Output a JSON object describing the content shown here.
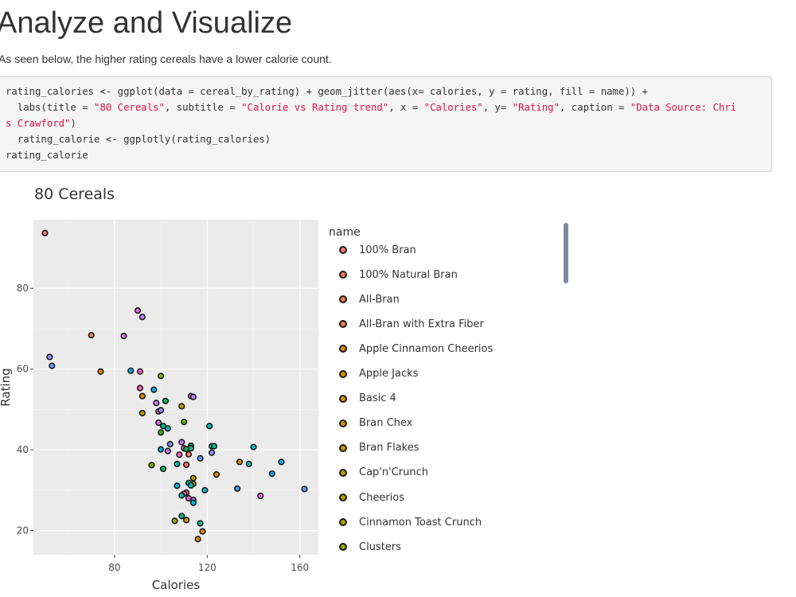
{
  "page": {
    "heading": "Analyze and Visualize",
    "description": "As seen below, the higher rating cereals have a lower calorie count."
  },
  "code": {
    "l1": "rating_calories <- ggplot(data = cereal_by_rating) + geom_jitter(aes(x= calories, y = rating, fill = name)) +",
    "l2a": "  labs(title = ",
    "l2b": "\"80 Cereals\"",
    "l2c": ", subtitle = ",
    "l2d": "\"Calorie vs Rating trend\"",
    "l2e": ", x = ",
    "l2f": "\"Calories\"",
    "l2g": ", y= ",
    "l2h": "\"Rating\"",
    "l2i": ", caption = ",
    "l2j": "\"Data Source: Chri",
    "l3a": "s Crawford\"",
    "l3b": ")",
    "l4": "  rating_calorie <- ggplotly(rating_calories)",
    "l5": "rating_calorie"
  },
  "chart_data": {
    "type": "scatter",
    "title": "80 Cereals",
    "xlabel": "Calories",
    "ylabel": "Rating",
    "xlim": [
      45,
      168
    ],
    "ylim": [
      14,
      97
    ],
    "xticks": [
      80,
      120,
      160
    ],
    "yticks": [
      20,
      40,
      60,
      80
    ],
    "grid": true,
    "legend_title": "name",
    "legend_position": "right",
    "legend": [
      {
        "name": "100% Bran",
        "color": "#f8766d"
      },
      {
        "name": "100% Natural Bran",
        "color": "#f47a5a"
      },
      {
        "name": "All-Bran",
        "color": "#f17d4f"
      },
      {
        "name": "All-Bran with Extra Fiber",
        "color": "#ec8240"
      },
      {
        "name": "Apple Cinnamon Cheerios",
        "color": "#e68613"
      },
      {
        "name": "Apple Jacks",
        "color": "#e08b00"
      },
      {
        "name": "Basic 4",
        "color": "#d89000"
      },
      {
        "name": "Bran Chex",
        "color": "#cf9400"
      },
      {
        "name": "Bran Flakes",
        "color": "#c59900"
      },
      {
        "name": "Cap'n'Crunch",
        "color": "#bb9d00"
      },
      {
        "name": "Cheerios",
        "color": "#b0a100"
      },
      {
        "name": "Cinnamon Toast Crunch",
        "color": "#a3a500"
      },
      {
        "name": "Clusters",
        "color": "#96a900"
      }
    ],
    "points": [
      {
        "x": 50,
        "y": 93.7,
        "color": "#f8766d"
      },
      {
        "x": 70,
        "y": 68.4,
        "color": "#ec8240"
      },
      {
        "x": 52,
        "y": 63.0,
        "color": "#8b93ff"
      },
      {
        "x": 53,
        "y": 60.8,
        "color": "#6e9bff"
      },
      {
        "x": 74,
        "y": 59.4,
        "color": "#e68613"
      },
      {
        "x": 84,
        "y": 68.2,
        "color": "#e76bf3"
      },
      {
        "x": 90,
        "y": 74.5,
        "color": "#e76bf3"
      },
      {
        "x": 92,
        "y": 72.9,
        "color": "#c77cff"
      },
      {
        "x": 87,
        "y": 59.6,
        "color": "#00b0f6"
      },
      {
        "x": 91,
        "y": 59.4,
        "color": "#fd61d1"
      },
      {
        "x": 100,
        "y": 58.3,
        "color": "#7cae00"
      },
      {
        "x": 91,
        "y": 55.3,
        "color": "#ff61c3"
      },
      {
        "x": 97,
        "y": 54.9,
        "color": "#00b8e7"
      },
      {
        "x": 92,
        "y": 53.3,
        "color": "#e08b00"
      },
      {
        "x": 113,
        "y": 53.3,
        "color": "#f564e3"
      },
      {
        "x": 114,
        "y": 53.1,
        "color": "#b983ff"
      },
      {
        "x": 98,
        "y": 51.6,
        "color": "#d575fe"
      },
      {
        "x": 102,
        "y": 52.1,
        "color": "#00bd5c"
      },
      {
        "x": 109,
        "y": 50.8,
        "color": "#c59900"
      },
      {
        "x": 92,
        "y": 49.1,
        "color": "#bb9d00"
      },
      {
        "x": 99,
        "y": 49.5,
        "color": "#ff6a98"
      },
      {
        "x": 100,
        "y": 49.8,
        "color": "#9590ff"
      },
      {
        "x": 99,
        "y": 46.7,
        "color": "#e76bf3"
      },
      {
        "x": 110,
        "y": 46.9,
        "color": "#5bb300"
      },
      {
        "x": 101,
        "y": 45.9,
        "color": "#00c08b"
      },
      {
        "x": 103,
        "y": 45.3,
        "color": "#00bfc4"
      },
      {
        "x": 100,
        "y": 44.3,
        "color": "#39b600"
      },
      {
        "x": 121,
        "y": 45.9,
        "color": "#00bfc4"
      },
      {
        "x": 104,
        "y": 41.4,
        "color": "#8b93ff"
      },
      {
        "x": 109,
        "y": 41.9,
        "color": "#d575fe"
      },
      {
        "x": 110,
        "y": 40.4,
        "color": "#e76bf3"
      },
      {
        "x": 111,
        "y": 40.2,
        "color": "#00bd5c"
      },
      {
        "x": 113,
        "y": 41.0,
        "color": "#00ba38"
      },
      {
        "x": 113,
        "y": 40.4,
        "color": "#00c19a"
      },
      {
        "x": 122,
        "y": 40.9,
        "color": "#00bf7d"
      },
      {
        "x": 123,
        "y": 40.9,
        "color": "#00c08b"
      },
      {
        "x": 100,
        "y": 40.1,
        "color": "#00a9ff"
      },
      {
        "x": 103,
        "y": 39.7,
        "color": "#c77cff"
      },
      {
        "x": 108,
        "y": 38.8,
        "color": "#ff61c3"
      },
      {
        "x": 112,
        "y": 38.9,
        "color": "#f8766d"
      },
      {
        "x": 122,
        "y": 39.3,
        "color": "#9590ff"
      },
      {
        "x": 140,
        "y": 40.7,
        "color": "#00bcd8"
      },
      {
        "x": 117,
        "y": 37.9,
        "color": "#619cff"
      },
      {
        "x": 107,
        "y": 36.5,
        "color": "#00c1aa"
      },
      {
        "x": 111,
        "y": 36.3,
        "color": "#f8766d"
      },
      {
        "x": 96,
        "y": 36.2,
        "color": "#7cae00"
      },
      {
        "x": 101,
        "y": 35.3,
        "color": "#00bd5c"
      },
      {
        "x": 134,
        "y": 37.0,
        "color": "#e08b00"
      },
      {
        "x": 138,
        "y": 36.5,
        "color": "#00c0b8"
      },
      {
        "x": 152,
        "y": 37.0,
        "color": "#00b4f0"
      },
      {
        "x": 124,
        "y": 33.9,
        "color": "#e68613"
      },
      {
        "x": 148,
        "y": 34.1,
        "color": "#00a9ff"
      },
      {
        "x": 114,
        "y": 33.0,
        "color": "#c59900"
      },
      {
        "x": 112,
        "y": 31.8,
        "color": "#00c08b"
      },
      {
        "x": 114,
        "y": 31.6,
        "color": "#a3a500"
      },
      {
        "x": 107,
        "y": 31.1,
        "color": "#00bcd8"
      },
      {
        "x": 113,
        "y": 31.2,
        "color": "#00bfc4"
      },
      {
        "x": 133,
        "y": 30.4,
        "color": "#35a2ff"
      },
      {
        "x": 162,
        "y": 30.3,
        "color": "#619cff"
      },
      {
        "x": 119,
        "y": 30.0,
        "color": "#00bcd8"
      },
      {
        "x": 111,
        "y": 29.4,
        "color": "#ff6c91"
      },
      {
        "x": 110,
        "y": 29.1,
        "color": "#ff6a98"
      },
      {
        "x": 109,
        "y": 28.7,
        "color": "#00c0b8"
      },
      {
        "x": 143,
        "y": 28.6,
        "color": "#e76bf3"
      },
      {
        "x": 112,
        "y": 28.0,
        "color": "#fd61d1"
      },
      {
        "x": 114,
        "y": 27.6,
        "color": "#b983ff"
      },
      {
        "x": 114,
        "y": 26.9,
        "color": "#00bcd8"
      },
      {
        "x": 109,
        "y": 23.6,
        "color": "#00c19a"
      },
      {
        "x": 106,
        "y": 22.4,
        "color": "#a3a500"
      },
      {
        "x": 111,
        "y": 22.6,
        "color": "#bb9d00"
      },
      {
        "x": 117,
        "y": 21.8,
        "color": "#00c08b"
      },
      {
        "x": 118,
        "y": 19.8,
        "color": "#e08b00"
      },
      {
        "x": 116,
        "y": 17.9,
        "color": "#d89000"
      }
    ]
  }
}
